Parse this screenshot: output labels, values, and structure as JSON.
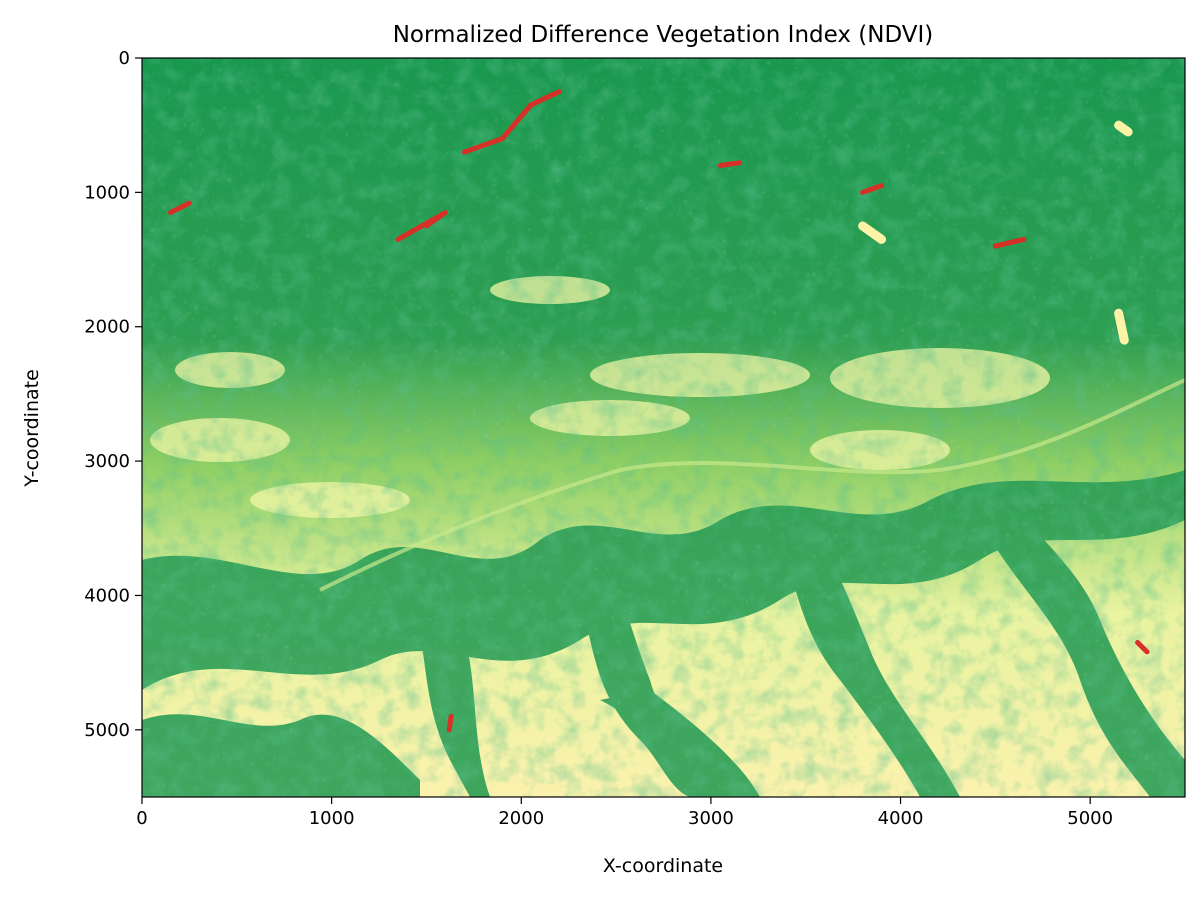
{
  "chart_data": {
    "type": "heatmap",
    "title": "Normalized Difference Vegetation Index (NDVI)",
    "xlabel": "X-coordinate",
    "ylabel": "Y-coordinate",
    "xlim": [
      0,
      5500
    ],
    "ylim": [
      5500,
      0
    ],
    "y_axis_inverted": true,
    "grid": false,
    "colormap": "RdYlGn",
    "colormap_stops": [
      "#a50026",
      "#d73027",
      "#f46d43",
      "#fdae61",
      "#fee08b",
      "#ffffbf",
      "#d9ef8b",
      "#a6d96a",
      "#66bd63",
      "#1a9850",
      "#006837"
    ],
    "dominant_colors": {
      "dense_vegetation": "#1a9850",
      "moderate_vegetation": "#66bd63",
      "sparse": "#fdf3a8",
      "water": "#d73027"
    },
    "x_ticks": [
      {
        "value": 0,
        "label": "0"
      },
      {
        "value": 1000,
        "label": "1000"
      },
      {
        "value": 2000,
        "label": "2000"
      },
      {
        "value": 3000,
        "label": "3000"
      },
      {
        "value": 4000,
        "label": "4000"
      },
      {
        "value": 5000,
        "label": "5000"
      }
    ],
    "y_ticks": [
      {
        "value": 0,
        "label": "0"
      },
      {
        "value": 1000,
        "label": "1000"
      },
      {
        "value": 2000,
        "label": "2000"
      },
      {
        "value": 3000,
        "label": "3000"
      },
      {
        "value": 4000,
        "label": "4000"
      },
      {
        "value": 5000,
        "label": "5000"
      }
    ],
    "features": [
      {
        "kind": "water",
        "points": [
          [
            1500,
            1250
          ],
          [
            1600,
            1150
          ],
          [
            1350,
            1350
          ]
        ]
      },
      {
        "kind": "water",
        "points": [
          [
            1700,
            700
          ],
          [
            1900,
            600
          ],
          [
            2050,
            350
          ],
          [
            2200,
            250
          ]
        ]
      },
      {
        "kind": "water",
        "points": [
          [
            150,
            1150
          ],
          [
            250,
            1080
          ]
        ]
      },
      {
        "kind": "water",
        "points": [
          [
            3800,
            1000
          ],
          [
            3900,
            950
          ]
        ]
      },
      {
        "kind": "water",
        "points": [
          [
            3050,
            800
          ],
          [
            3150,
            780
          ]
        ]
      },
      {
        "kind": "water",
        "points": [
          [
            4500,
            1400
          ],
          [
            4650,
            1350
          ]
        ]
      },
      {
        "kind": "water",
        "points": [
          [
            5250,
            4350
          ],
          [
            5300,
            4420
          ]
        ]
      },
      {
        "kind": "water",
        "points": [
          [
            1620,
            5000
          ],
          [
            1630,
            4900
          ]
        ]
      },
      {
        "kind": "sparse",
        "points": [
          [
            3850,
            1300
          ],
          [
            3800,
            1250
          ],
          [
            3900,
            1350
          ]
        ]
      },
      {
        "kind": "sparse",
        "points": [
          [
            5200,
            550
          ],
          [
            5150,
            500
          ]
        ]
      },
      {
        "kind": "sparse",
        "points": [
          [
            5150,
            1900
          ],
          [
            5180,
            2100
          ]
        ]
      }
    ]
  }
}
